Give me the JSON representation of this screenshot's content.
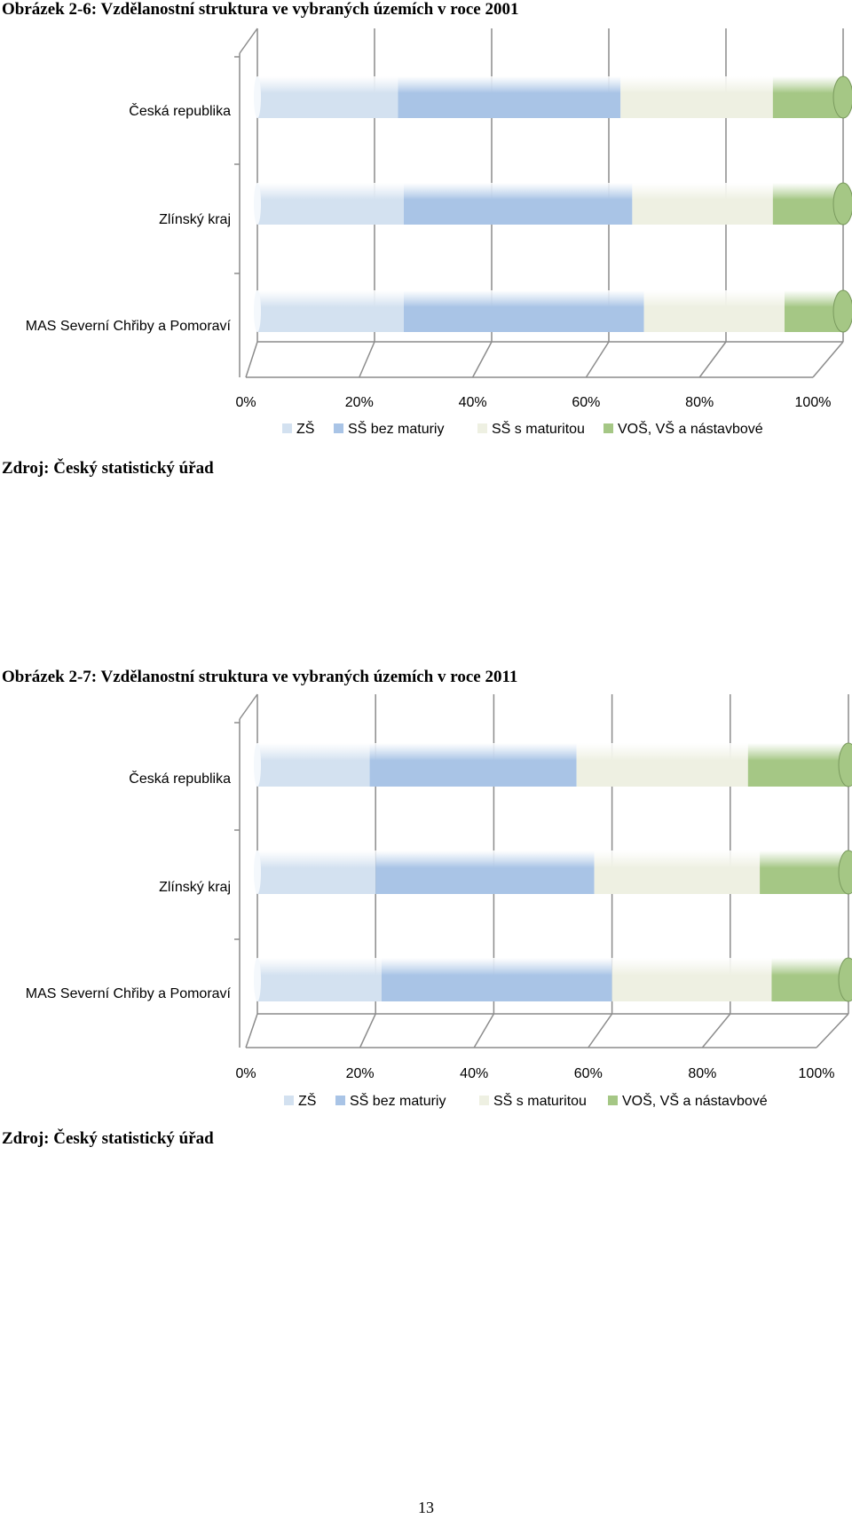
{
  "figures": [
    {
      "caption": "Obrázek 2-6: Vzdělanostní struktura ve vybraných územích v roce 2001",
      "source": "Zdroj: Český statistický úřad"
    },
    {
      "caption": "Obrázek 2-7: Vzdělanostní struktura ve vybraných územích v roce 2011",
      "source": "Zdroj: Český statistický úřad"
    }
  ],
  "page_number": "13",
  "colors": {
    "ZS": "#d3e1f0",
    "SS_bez": "#a9c4e6",
    "SS_s": "#eef0e2",
    "VOS": "#a5c785",
    "grid": "#8c8c8c"
  },
  "chart_data": [
    {
      "type": "bar",
      "orientation": "horizontal",
      "stacked": "percent",
      "title": "",
      "categories": [
        "Česká republika",
        "Zlínský kraj",
        "MAS Severní Chřiby a Pomoraví"
      ],
      "series": [
        {
          "name": "ZŠ",
          "values": [
            24,
            25,
            25
          ]
        },
        {
          "name": "SŠ bez maturiy",
          "values": [
            38,
            39,
            41
          ]
        },
        {
          "name": "SŠ s maturitou",
          "values": [
            26,
            24,
            24
          ]
        },
        {
          "name": "VOŠ, VŠ a nástavbové",
          "values": [
            12,
            12,
            10
          ]
        }
      ],
      "xticks": [
        "0%",
        "20%",
        "40%",
        "60%",
        "80%",
        "100%"
      ],
      "xlim": [
        0,
        100
      ],
      "grid": true,
      "legend_position": "bottom"
    },
    {
      "type": "bar",
      "orientation": "horizontal",
      "stacked": "percent",
      "title": "",
      "categories": [
        "Česká republika",
        "Zlínský kraj",
        "MAS Severní Chřiby a Pomoraví"
      ],
      "series": [
        {
          "name": "ZŠ",
          "values": [
            19,
            20,
            21
          ]
        },
        {
          "name": "SŠ bez maturiy",
          "values": [
            35,
            37,
            39
          ]
        },
        {
          "name": "SŠ s maturitou",
          "values": [
            29,
            28,
            27
          ]
        },
        {
          "name": "VOŠ, VŠ a nástavbové",
          "values": [
            17,
            15,
            13
          ]
        }
      ],
      "xticks": [
        "0%",
        "20%",
        "40%",
        "60%",
        "80%",
        "100%"
      ],
      "xlim": [
        0,
        100
      ],
      "grid": true,
      "legend_position": "bottom"
    }
  ]
}
